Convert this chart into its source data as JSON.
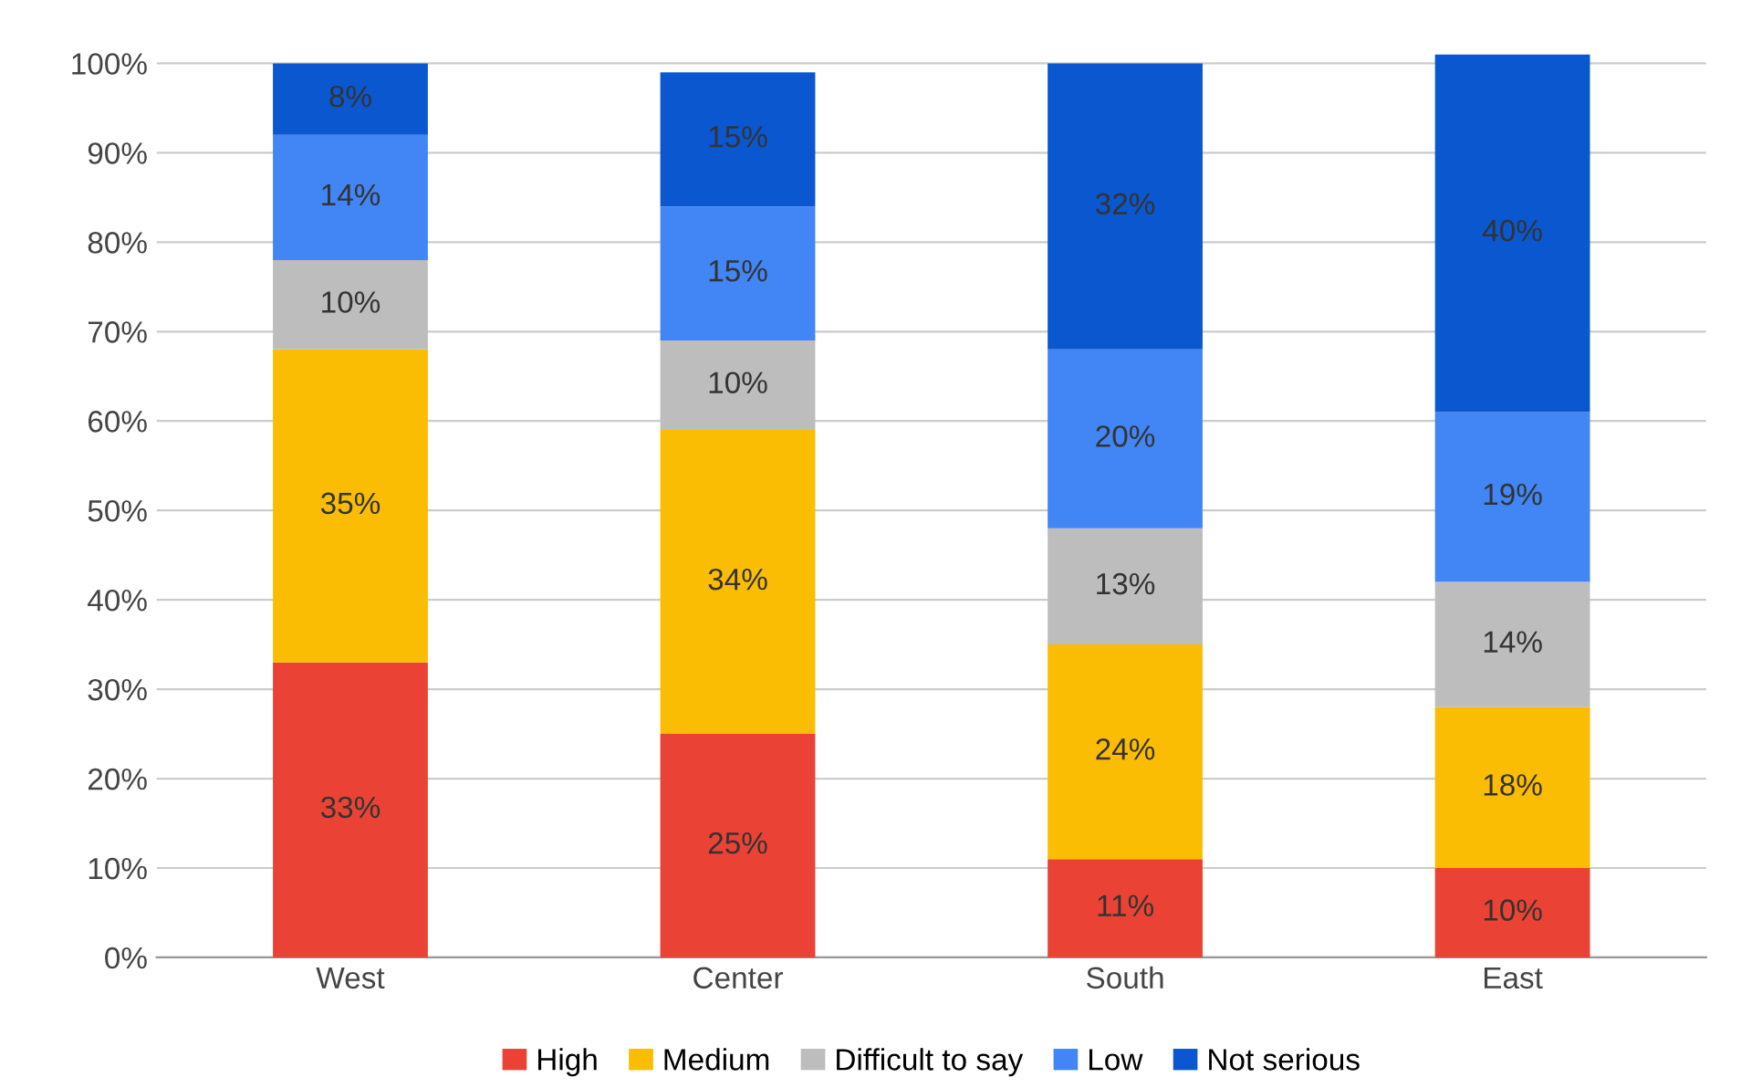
{
  "chart_data": {
    "type": "bar",
    "stacked": true,
    "categories": [
      "West",
      "Center",
      "South",
      "East"
    ],
    "series": [
      {
        "name": "High",
        "color": "#ea4335",
        "values": [
          33,
          25,
          11,
          10
        ],
        "value_labels": [
          "33%",
          "25%",
          "11%",
          "10%"
        ]
      },
      {
        "name": "Medium",
        "color": "#fbbc04",
        "values": [
          35,
          34,
          24,
          18
        ],
        "value_labels": [
          "35%",
          "34%",
          "24%",
          "18%"
        ]
      },
      {
        "name": "Difficult to say",
        "color": "#bdbdbd",
        "values": [
          10,
          10,
          13,
          14
        ],
        "value_labels": [
          "10%",
          "10%",
          "13%",
          "14%"
        ]
      },
      {
        "name": "Low",
        "color": "#4285f4",
        "values": [
          14,
          15,
          20,
          19
        ],
        "value_labels": [
          "14%",
          "15%",
          "20%",
          "19%"
        ]
      },
      {
        "name": "Not serious",
        "color": "#0b57d0",
        "values": [
          8,
          15,
          32,
          40
        ],
        "value_labels": [
          "8%",
          "15%",
          "32%",
          "40%"
        ]
      }
    ],
    "ylim": [
      0,
      101
    ],
    "yticks": [
      {
        "value": 0,
        "label": "0%"
      },
      {
        "value": 10,
        "label": "10%"
      },
      {
        "value": 20,
        "label": "20%"
      },
      {
        "value": 30,
        "label": "30%"
      },
      {
        "value": 40,
        "label": "40%"
      },
      {
        "value": 50,
        "label": "50%"
      },
      {
        "value": 60,
        "label": "60%"
      },
      {
        "value": 70,
        "label": "70%"
      },
      {
        "value": 80,
        "label": "80%"
      },
      {
        "value": 90,
        "label": "90%"
      },
      {
        "value": 100,
        "label": "100%"
      }
    ],
    "grid": "y",
    "legend": "bottom"
  }
}
